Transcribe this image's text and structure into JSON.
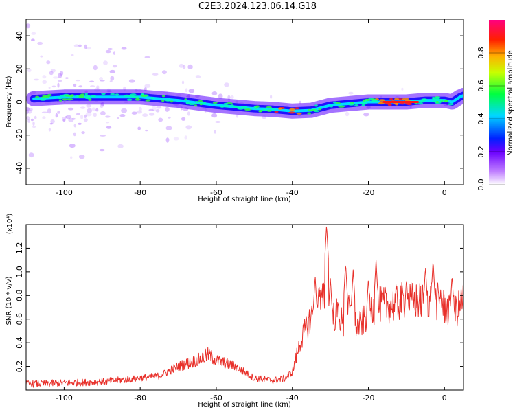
{
  "title": "C2E3.2024.123.06.14.G18",
  "chart_data": [
    {
      "type": "heatmap",
      "xlabel": "Height of straight line (km)",
      "ylabel": "Frequency (Hz)",
      "xlim": [
        -110,
        5
      ],
      "ylim": [
        -50,
        50
      ],
      "xticks": [
        "-100",
        "-80",
        "-60",
        "-40",
        "-20",
        "0"
      ],
      "yticks": [
        "-40",
        "-20",
        "0",
        "20",
        "40"
      ],
      "colorbar": {
        "label": "Normalized spectral amplitude",
        "range": [
          0,
          1
        ],
        "ticks": [
          "0.0",
          "0.2",
          "0.4",
          "0.6",
          "0.8"
        ]
      },
      "ridge": {
        "x": [
          -108,
          -100,
          -90,
          -80,
          -70,
          -60,
          -50,
          -45,
          -40,
          -35,
          -30,
          -25,
          -20,
          -15,
          -10,
          -5,
          0,
          2,
          4,
          5
        ],
        "y": [
          2,
          3,
          3,
          3,
          1,
          -2,
          -4,
          -4.5,
          -5.5,
          -5,
          -2,
          -1,
          0,
          0,
          0,
          1,
          1,
          0,
          3,
          4
        ]
      }
    },
    {
      "type": "line",
      "xlabel": "Height of straight line (km)",
      "ylabel": "SNR (10 * v/v)",
      "y_multiplier": "(x10⁴)",
      "xlim": [
        -110,
        5
      ],
      "ylim": [
        0,
        1.4
      ],
      "xticks": [
        "-100",
        "-80",
        "-60",
        "-40",
        "-20",
        "0"
      ],
      "yticks": [
        "0.2",
        "0.4",
        "0.6",
        "0.8",
        "1.0",
        "1.2"
      ],
      "color": "#e8302a",
      "envelope": {
        "x": [
          -110,
          -100,
          -90,
          -80,
          -75,
          -70,
          -65,
          -62,
          -60,
          -55,
          -50,
          -45,
          -42,
          -40,
          -38,
          -36,
          -34,
          -32,
          -31,
          -30,
          -28,
          -26,
          -25,
          -24,
          -22,
          -20,
          -18,
          -16,
          -14,
          -12,
          -10,
          -8,
          -6,
          -4,
          -2,
          0,
          2,
          4,
          5
        ],
        "y": [
          0.05,
          0.06,
          0.07,
          0.1,
          0.12,
          0.2,
          0.25,
          0.3,
          0.25,
          0.2,
          0.1,
          0.08,
          0.1,
          0.15,
          0.4,
          0.55,
          0.7,
          0.75,
          0.8,
          0.6,
          0.65,
          0.5,
          0.7,
          0.55,
          0.55,
          0.65,
          0.72,
          0.72,
          0.72,
          0.74,
          0.76,
          0.75,
          0.75,
          0.78,
          0.75,
          0.7,
          0.65,
          0.7,
          0.8
        ]
      },
      "spikes": {
        "x": [
          -34,
          -33,
          -31,
          -30,
          -28,
          -26,
          -24,
          -20,
          -18,
          -10,
          -5,
          -3,
          -1,
          2
        ],
        "y": [
          0.97,
          0.9,
          1.4,
          0.95,
          0.75,
          1.08,
          1.02,
          0.95,
          1.1,
          0.95,
          1.05,
          1.1,
          0.85,
          0.98
        ]
      }
    }
  ]
}
